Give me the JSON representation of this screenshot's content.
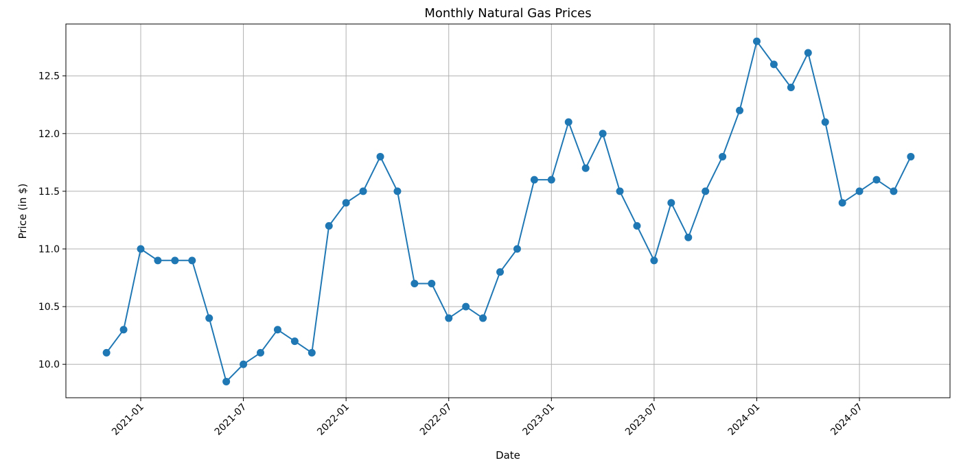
{
  "chart_data": {
    "type": "line",
    "title": "Monthly Natural Gas Prices",
    "xlabel": "Date",
    "ylabel": "Price (in $)",
    "x": [
      "2020-11",
      "2020-12",
      "2021-01",
      "2021-02",
      "2021-03",
      "2021-04",
      "2021-05",
      "2021-06",
      "2021-07",
      "2021-08",
      "2021-09",
      "2021-10",
      "2021-11",
      "2021-12",
      "2022-01",
      "2022-02",
      "2022-03",
      "2022-04",
      "2022-05",
      "2022-06",
      "2022-07",
      "2022-08",
      "2022-09",
      "2022-10",
      "2022-11",
      "2022-12",
      "2023-01",
      "2023-02",
      "2023-03",
      "2023-04",
      "2023-05",
      "2023-06",
      "2023-07",
      "2023-08",
      "2023-09",
      "2023-10",
      "2023-11",
      "2023-12",
      "2024-01",
      "2024-02",
      "2024-03",
      "2024-04",
      "2024-05",
      "2024-06",
      "2024-07",
      "2024-08",
      "2024-09",
      "2024-10"
    ],
    "series": [
      {
        "values": [
          10.1,
          10.3,
          11.0,
          10.9,
          10.9,
          10.9,
          10.4,
          9.85,
          10.0,
          10.1,
          10.3,
          10.2,
          10.1,
          11.2,
          11.4,
          11.5,
          11.8,
          11.5,
          10.7,
          10.7,
          10.4,
          10.5,
          10.4,
          10.8,
          11.0,
          11.6,
          11.6,
          12.1,
          11.7,
          12.0,
          11.5,
          11.2,
          10.9,
          11.4,
          11.1,
          11.5,
          11.8,
          12.2,
          12.8,
          12.6,
          12.4,
          12.7,
          12.1,
          11.4,
          11.5,
          11.6,
          11.5,
          11.8
        ],
        "color": "#1f77b4"
      }
    ],
    "xticks": [
      "2021-01",
      "2021-07",
      "2022-01",
      "2022-07",
      "2023-01",
      "2023-07",
      "2024-01",
      "2024-07"
    ],
    "yticks": [
      "10.0",
      "10.5",
      "11.0",
      "11.5",
      "12.0",
      "12.5"
    ],
    "ylim": [
      9.71,
      12.95
    ],
    "grid": true,
    "legend": "none",
    "marker": "circle"
  }
}
